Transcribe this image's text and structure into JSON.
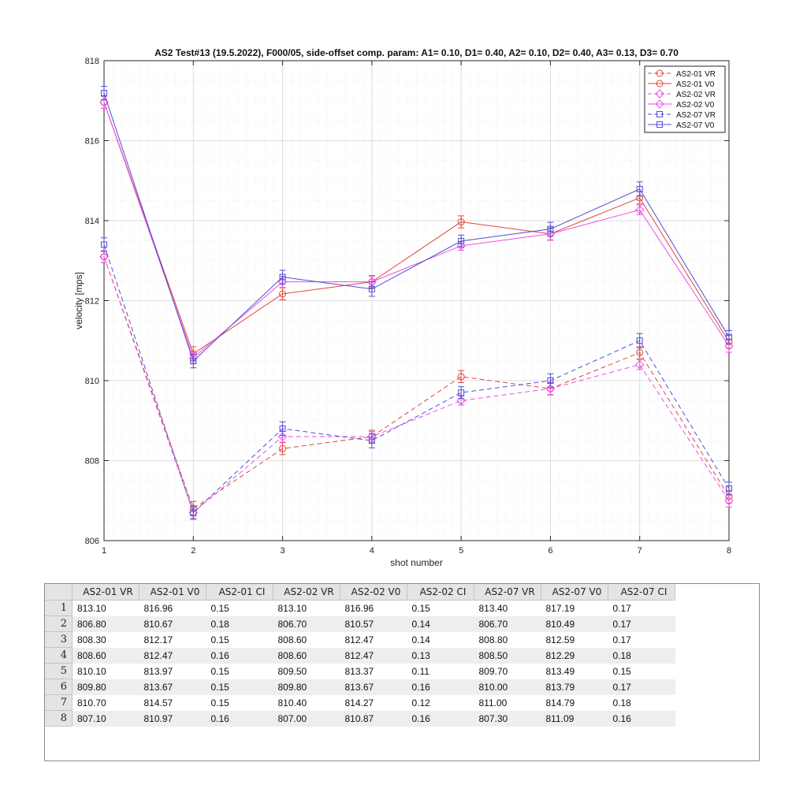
{
  "chart_data": {
    "type": "line",
    "title": "AS2 Test#13 (19.5.2022), F000/05,  side-offset comp. param:  A1= 0.10, D1= 0.40, A2= 0.10, D2= 0.40, A3= 0.13, D3= 0.70",
    "xlabel": "shot number",
    "ylabel": "velocity [mps]",
    "xlim": [
      1,
      8
    ],
    "ylim": [
      806,
      818
    ],
    "x_ticks": [
      "1",
      "2",
      "3",
      "4",
      "5",
      "6",
      "7",
      "8"
    ],
    "y_ticks": [
      "806",
      "808",
      "810",
      "812",
      "814",
      "816",
      "818"
    ],
    "grid": "major and minor",
    "legend_position": "top-right",
    "x": [
      1,
      2,
      3,
      4,
      5,
      6,
      7,
      8
    ],
    "series": [
      {
        "name": "AS2-01 VR",
        "color": "#e0453a",
        "marker": "circle",
        "dashed": true,
        "values": [
          813.1,
          806.8,
          808.3,
          808.6,
          810.1,
          809.8,
          810.7,
          807.1
        ],
        "ci": [
          0.15,
          0.18,
          0.15,
          0.16,
          0.15,
          0.15,
          0.15,
          0.16
        ]
      },
      {
        "name": "AS2-01 V0",
        "color": "#e0453a",
        "marker": "circle",
        "dashed": false,
        "values": [
          816.96,
          810.67,
          812.17,
          812.47,
          813.97,
          813.67,
          814.57,
          810.97
        ],
        "ci": [
          0.15,
          0.18,
          0.15,
          0.16,
          0.15,
          0.15,
          0.15,
          0.16
        ]
      },
      {
        "name": "AS2-02 VR",
        "color": "#e84fe3",
        "marker": "diamond",
        "dashed": true,
        "values": [
          813.1,
          806.7,
          808.6,
          808.6,
          809.5,
          809.8,
          810.4,
          807.0
        ],
        "ci": [
          0.15,
          0.14,
          0.14,
          0.13,
          0.11,
          0.16,
          0.12,
          0.16
        ]
      },
      {
        "name": "AS2-02 V0",
        "color": "#e84fe3",
        "marker": "diamond",
        "dashed": false,
        "values": [
          816.96,
          810.57,
          812.47,
          812.47,
          813.37,
          813.67,
          814.27,
          810.87
        ],
        "ci": [
          0.15,
          0.14,
          0.14,
          0.13,
          0.11,
          0.16,
          0.12,
          0.16
        ]
      },
      {
        "name": "AS2-07 VR",
        "color": "#4d4fd6",
        "marker": "square",
        "dashed": true,
        "values": [
          813.4,
          806.7,
          808.8,
          808.5,
          809.7,
          810.0,
          811.0,
          807.3
        ],
        "ci": [
          0.17,
          0.17,
          0.17,
          0.18,
          0.15,
          0.17,
          0.18,
          0.16
        ]
      },
      {
        "name": "AS2-07 V0",
        "color": "#4d4fd6",
        "marker": "square",
        "dashed": false,
        "values": [
          817.19,
          810.49,
          812.59,
          812.29,
          813.49,
          813.79,
          814.79,
          811.09
        ],
        "ci": [
          0.17,
          0.17,
          0.17,
          0.18,
          0.15,
          0.17,
          0.18,
          0.16
        ]
      }
    ]
  },
  "table": {
    "columns": [
      "AS2-01 VR",
      "AS2-01 V0",
      "AS2-01 CI",
      "AS2-02 VR",
      "AS2-02 V0",
      "AS2-02 CI",
      "AS2-07 VR",
      "AS2-07 V0",
      "AS2-07 CI"
    ],
    "rows": [
      {
        "n": "1",
        "cells": [
          "813.10",
          "816.96",
          "0.15",
          "813.10",
          "816.96",
          "0.15",
          "813.40",
          "817.19",
          "0.17"
        ]
      },
      {
        "n": "2",
        "cells": [
          "806.80",
          "810.67",
          "0.18",
          "806.70",
          "810.57",
          "0.14",
          "806.70",
          "810.49",
          "0.17"
        ]
      },
      {
        "n": "3",
        "cells": [
          "808.30",
          "812.17",
          "0.15",
          "808.60",
          "812.47",
          "0.14",
          "808.80",
          "812.59",
          "0.17"
        ]
      },
      {
        "n": "4",
        "cells": [
          "808.60",
          "812.47",
          "0.16",
          "808.60",
          "812.47",
          "0.13",
          "808.50",
          "812.29",
          "0.18"
        ]
      },
      {
        "n": "5",
        "cells": [
          "810.10",
          "813.97",
          "0.15",
          "809.50",
          "813.37",
          "0.11",
          "809.70",
          "813.49",
          "0.15"
        ]
      },
      {
        "n": "6",
        "cells": [
          "809.80",
          "813.67",
          "0.15",
          "809.80",
          "813.67",
          "0.16",
          "810.00",
          "813.79",
          "0.17"
        ]
      },
      {
        "n": "7",
        "cells": [
          "810.70",
          "814.57",
          "0.15",
          "810.40",
          "814.27",
          "0.12",
          "811.00",
          "814.79",
          "0.18"
        ]
      },
      {
        "n": "8",
        "cells": [
          "807.10",
          "810.97",
          "0.16",
          "807.00",
          "810.87",
          "0.16",
          "807.30",
          "811.09",
          "0.16"
        ]
      }
    ]
  }
}
